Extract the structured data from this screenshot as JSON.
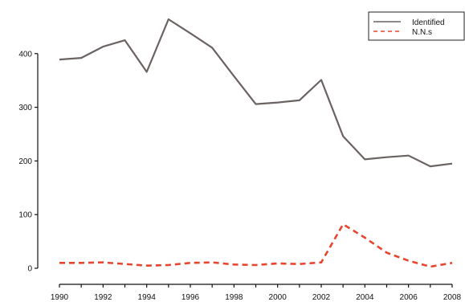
{
  "chart_data": {
    "type": "line",
    "x": [
      1990,
      1991,
      1992,
      1993,
      1994,
      1995,
      1996,
      1997,
      1998,
      1999,
      2000,
      2001,
      2002,
      2003,
      2004,
      2005,
      2006,
      2007,
      2008
    ],
    "series": [
      {
        "name": "Identified",
        "color": "#6b6262",
        "style": "solid",
        "values": [
          389,
          392,
          413,
          425,
          366,
          464,
          438,
          411,
          358,
          306,
          309,
          313,
          351,
          246,
          203,
          207,
          210,
          190,
          195
        ]
      },
      {
        "name": "N.N.s",
        "color": "#e8452f",
        "style": "dashed",
        "values": [
          10,
          10,
          11,
          8,
          5,
          6,
          10,
          11,
          7,
          6,
          9,
          8,
          11,
          82,
          57,
          29,
          14,
          3,
          10
        ]
      }
    ],
    "xticks": [
      "1990",
      "1992",
      "1994",
      "1996",
      "1998",
      "2000",
      "2002",
      "2004",
      "2006",
      "2008"
    ],
    "yticks": [
      "0",
      "100",
      "200",
      "300",
      "400"
    ],
    "xlim": [
      1990,
      2008
    ],
    "ylim": [
      0,
      464
    ],
    "grid": false,
    "legend_position": "top-right",
    "title": "",
    "xlabel": "",
    "ylabel": ""
  }
}
